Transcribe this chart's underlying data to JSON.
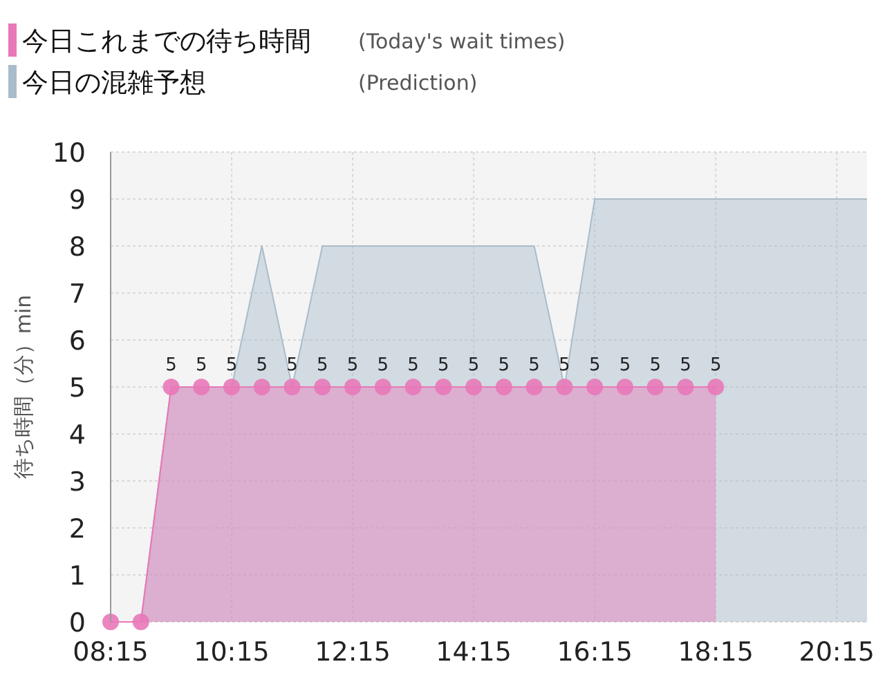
{
  "chart_data": {
    "type": "area",
    "ylabel": "待ち時間（分）min",
    "xlim": [
      8.25,
      20.75
    ],
    "xticks": [
      {
        "value": 8.25,
        "label": "08:15"
      },
      {
        "value": 10.25,
        "label": "10:15"
      },
      {
        "value": 12.25,
        "label": "12:15"
      },
      {
        "value": 14.25,
        "label": "14:15"
      },
      {
        "value": 16.25,
        "label": "16:15"
      },
      {
        "value": 18.25,
        "label": "18:15"
      },
      {
        "value": 20.25,
        "label": "20:15"
      }
    ],
    "ylim": [
      0,
      10
    ],
    "yticks": [
      0,
      1,
      2,
      3,
      4,
      5,
      6,
      7,
      8,
      9,
      10
    ],
    "grid": true,
    "legend": "top left",
    "annotations": [
      "(Today's wait times)",
      "(Prediction)"
    ],
    "series": [
      {
        "name": "今日の混雑予想",
        "color": "#a9bccb",
        "marker": "none",
        "x": [
          8.25,
          8.75,
          9.25,
          9.75,
          10.25,
          10.75,
          11.25,
          11.75,
          12.25,
          12.75,
          13.25,
          13.75,
          14.25,
          14.75,
          15.25,
          15.75,
          16.25,
          16.75,
          17.25,
          17.75,
          18.25,
          18.75,
          19.25,
          19.75,
          20.25,
          20.75
        ],
        "values": [
          0,
          0,
          5,
          5,
          5,
          8,
          5,
          8,
          8,
          8,
          8,
          8,
          8,
          8,
          8,
          5,
          9,
          9,
          9,
          9,
          9,
          9,
          9,
          9,
          9,
          9
        ]
      },
      {
        "name": "今日これまでの待ち時間",
        "color": "#e878b8",
        "marker": "circle",
        "x": [
          8.25,
          8.75,
          9.25,
          9.75,
          10.25,
          10.75,
          11.25,
          11.75,
          12.25,
          12.75,
          13.25,
          13.75,
          14.25,
          14.75,
          15.25,
          15.75,
          16.25,
          16.75,
          17.25,
          17.75,
          18.25
        ],
        "values": [
          0,
          0,
          5,
          5,
          5,
          5,
          5,
          5,
          5,
          5,
          5,
          5,
          5,
          5,
          5,
          5,
          5,
          5,
          5,
          5,
          5
        ],
        "value_labels": [
          null,
          null,
          "5",
          "5",
          "5",
          "5",
          "5",
          "5",
          "5",
          "5",
          "5",
          "5",
          "5",
          "5",
          "5",
          "5",
          "5",
          "5",
          "5",
          "5",
          "5"
        ]
      }
    ]
  }
}
